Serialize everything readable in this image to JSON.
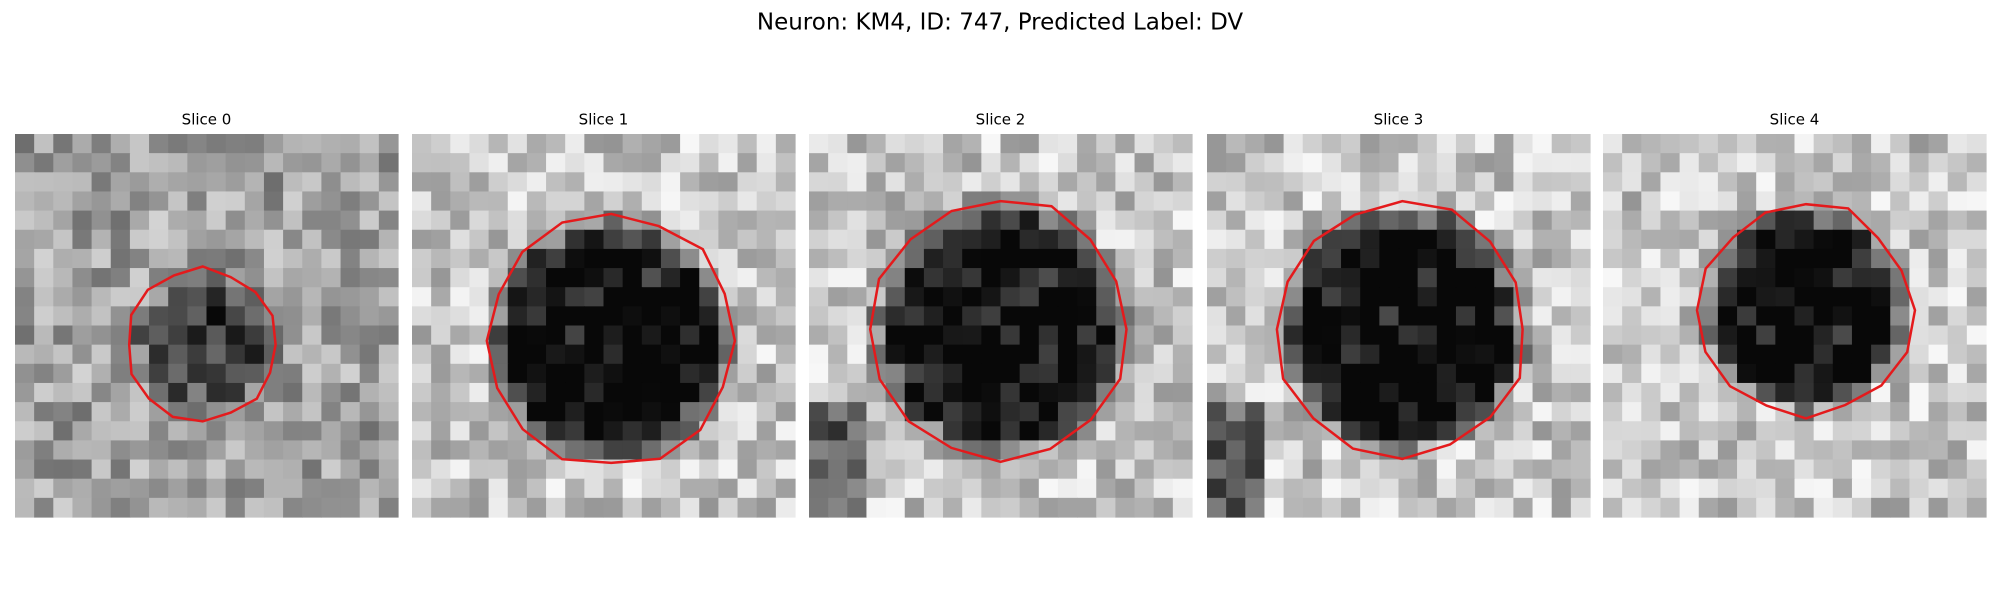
{
  "title": "Neuron: KM4, ID: 747, Predicted Label: DV",
  "panels": [
    {
      "title": "Slice 0"
    },
    {
      "title": "Slice 1"
    },
    {
      "title": "Slice 2"
    },
    {
      "title": "Slice 3"
    },
    {
      "title": "Slice 4"
    }
  ]
}
